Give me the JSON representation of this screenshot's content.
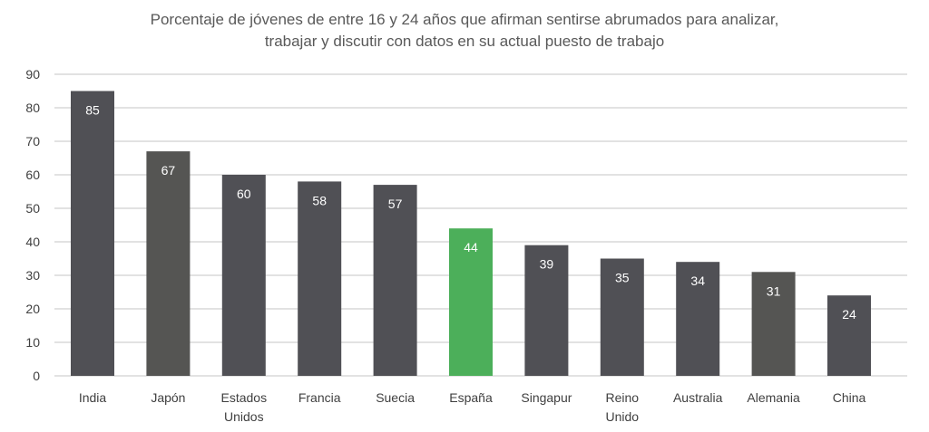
{
  "chart_data": {
    "type": "bar",
    "title": [
      "Porcentaje de jóvenes de entre 16 y 24 años que afirman sentirse abrumados para analizar,",
      "trabajar y discutir con datos en su actual puesto de trabajo"
    ],
    "categories": [
      [
        "India"
      ],
      [
        "Japón"
      ],
      [
        "Estados",
        "Unidos"
      ],
      [
        "Francia"
      ],
      [
        "Suecia"
      ],
      [
        "España"
      ],
      [
        "Singapur"
      ],
      [
        "Reino",
        "Unido"
      ],
      [
        "Australia"
      ],
      [
        "Alemania"
      ],
      [
        "China"
      ]
    ],
    "values": [
      85,
      67,
      60,
      58,
      57,
      44,
      39,
      35,
      34,
      31,
      24
    ],
    "colors": [
      "#505055",
      "#555553",
      "#505055",
      "#505055",
      "#505055",
      "#4caf5a",
      "#505055",
      "#505055",
      "#505055",
      "#555553",
      "#505055"
    ],
    "ylim": [
      0,
      90
    ],
    "yticks": [
      0,
      10,
      20,
      30,
      40,
      50,
      60,
      70,
      80,
      90
    ],
    "grid": true,
    "data_labels": true,
    "gridline_color": "#d9d9d9"
  }
}
